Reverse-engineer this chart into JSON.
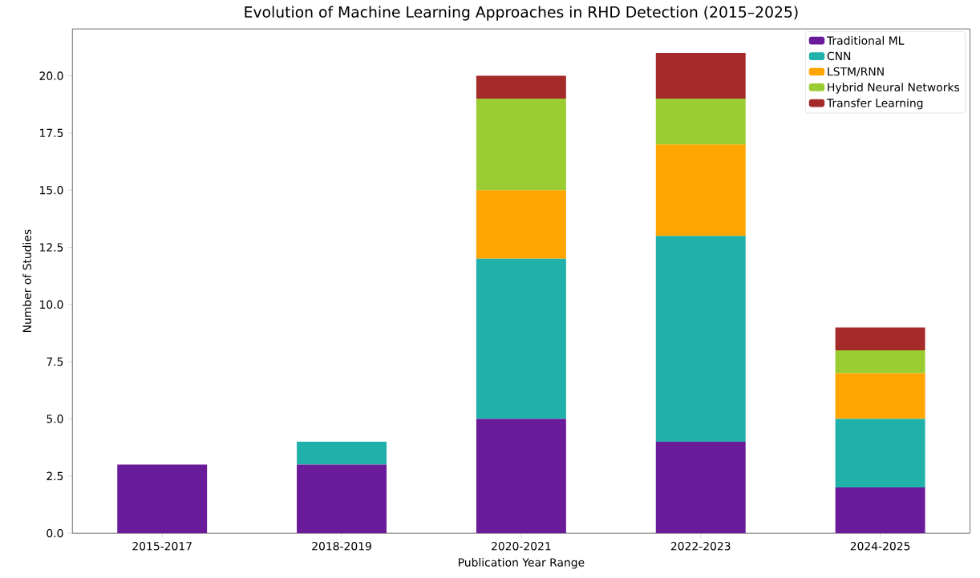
{
  "chart_data": {
    "type": "bar",
    "stacked": true,
    "title": "Evolution of Machine Learning Approaches in RHD Detection (2015–2025)",
    "xlabel": "Publication Year Range",
    "ylabel": "Number of Studies",
    "categories": [
      "2015-2017",
      "2018-2019",
      "2020-2021",
      "2022-2023",
      "2024-2025"
    ],
    "series": [
      {
        "name": "Traditional ML",
        "color": "#6a1b9a",
        "values": [
          3,
          3,
          5,
          4,
          2
        ]
      },
      {
        "name": "CNN",
        "color": "#20b2aa",
        "values": [
          0,
          1,
          7,
          9,
          3
        ]
      },
      {
        "name": "LSTM/RNN",
        "color": "#ffa500",
        "values": [
          0,
          0,
          3,
          4,
          2
        ]
      },
      {
        "name": "Hybrid Neural Networks",
        "color": "#9acd32",
        "values": [
          0,
          0,
          4,
          2,
          1
        ]
      },
      {
        "name": "Transfer Learning",
        "color": "#a52a2a",
        "values": [
          0,
          0,
          1,
          2,
          1
        ]
      }
    ],
    "ylim": [
      0,
      22.05
    ],
    "yticks": [
      {
        "value": 0,
        "label": "0.0"
      },
      {
        "value": 2.5,
        "label": "2.5"
      },
      {
        "value": 5,
        "label": "5.0"
      },
      {
        "value": 7.5,
        "label": "7.5"
      },
      {
        "value": 10,
        "label": "10.0"
      },
      {
        "value": 12.5,
        "label": "12.5"
      },
      {
        "value": 15,
        "label": "15.0"
      },
      {
        "value": 17.5,
        "label": "17.5"
      },
      {
        "value": 20,
        "label": "20.0"
      }
    ],
    "legend": "top right",
    "grid": false
  }
}
